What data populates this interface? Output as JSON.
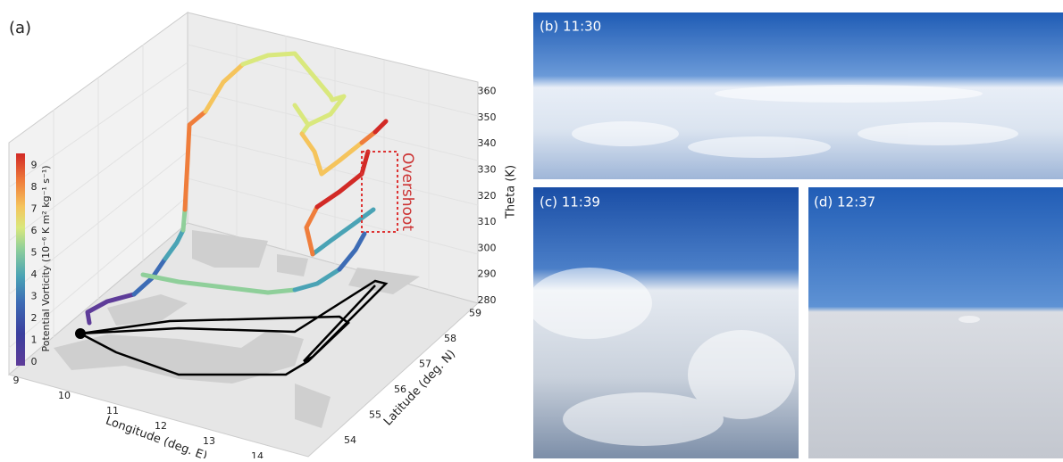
{
  "panel_a": {
    "label": "(a)",
    "overshoot": "Overshoot",
    "x_axis": {
      "label": "Longitude (deg. E)",
      "ticks": [
        9,
        10,
        11,
        12,
        13,
        14
      ]
    },
    "y_axis": {
      "label": "Latitude (deg. N)",
      "ticks": [
        54,
        55,
        56,
        57,
        58,
        59
      ]
    },
    "z_axis": {
      "label": "Theta (K)",
      "ticks": [
        280,
        290,
        300,
        310,
        320,
        330,
        340,
        350,
        360
      ]
    },
    "colorbar": {
      "label": "Potential Vorticity (10⁻⁶ K m² kg⁻¹ s⁻¹)",
      "ticks": [
        0,
        1,
        2,
        3,
        4,
        5,
        6,
        7,
        8,
        9
      ]
    }
  },
  "photos": [
    {
      "label": "(b) 11:30"
    },
    {
      "label": "(c) 11:39"
    },
    {
      "label": "(d) 12:37"
    }
  ]
}
